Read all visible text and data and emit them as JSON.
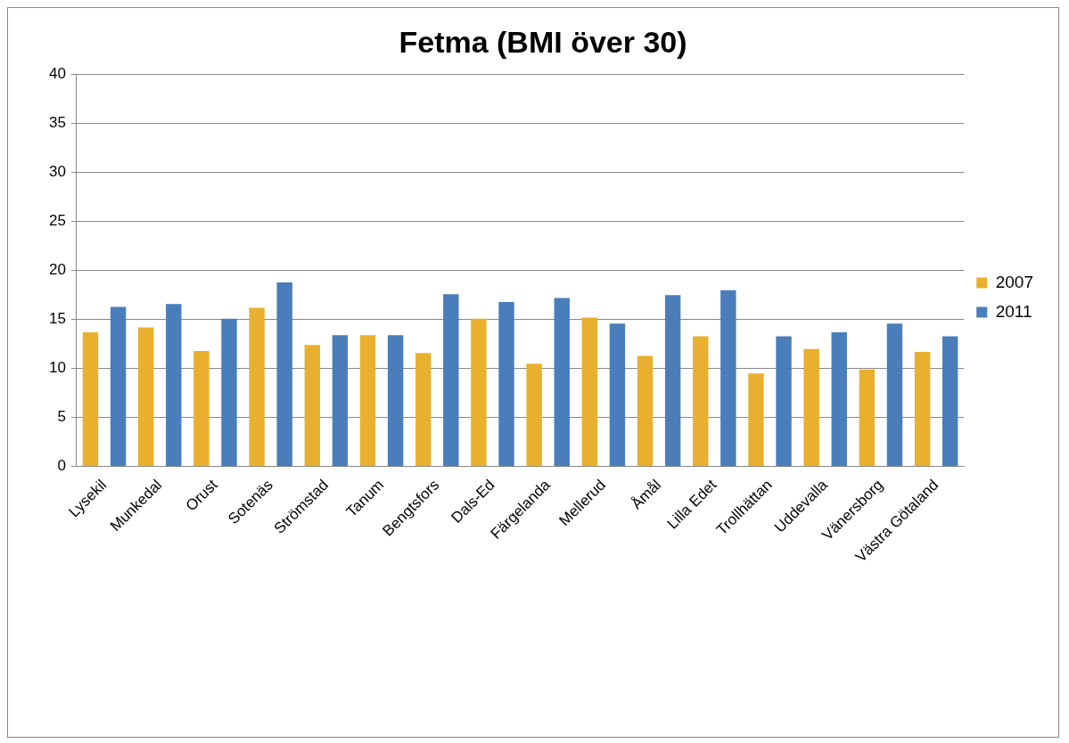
{
  "chart_data": {
    "type": "bar",
    "title": "Fetma (BMI över 30)",
    "categories": [
      "Lysekil",
      "Munkedal",
      "Orust",
      "Sotenäs",
      "Strömstad",
      "Tanum",
      "Bengtsfors",
      "Dals-Ed",
      "Färgelanda",
      "Mellerud",
      "Åmål",
      "Lilla Edet",
      "Trollhättan",
      "Uddevalla",
      "Vänersborg",
      "Västra Götaland"
    ],
    "series": [
      {
        "name": "2007",
        "color": "#e8b02e",
        "values": [
          13.7,
          14.2,
          11.8,
          16.2,
          12.4,
          13.4,
          11.6,
          15.1,
          10.5,
          15.2,
          11.3,
          13.3,
          9.5,
          12.0,
          9.9,
          11.7
        ]
      },
      {
        "name": "2011",
        "color": "#4a7ebb",
        "values": [
          16.3,
          16.6,
          15.1,
          18.8,
          13.4,
          13.4,
          17.6,
          16.8,
          17.2,
          14.6,
          17.5,
          18.0,
          13.3,
          13.7,
          14.6,
          13.3
        ]
      }
    ],
    "ylim": [
      0,
      40
    ],
    "yticks": [
      0,
      5,
      10,
      15,
      20,
      25,
      30,
      35,
      40
    ],
    "grid": "y",
    "legend": "right"
  }
}
